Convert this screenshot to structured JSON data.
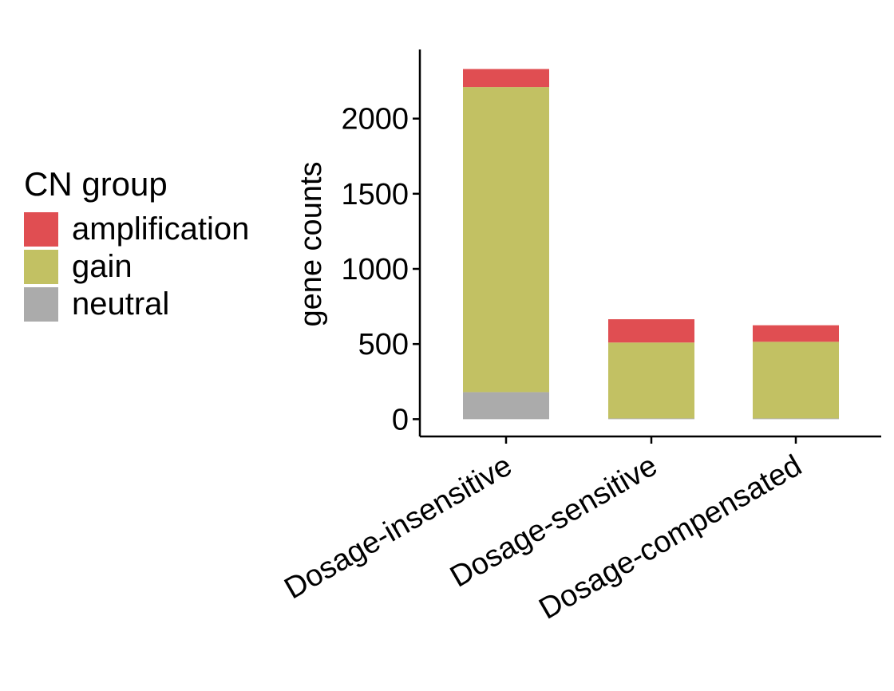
{
  "chart_data": {
    "type": "bar",
    "stacked": true,
    "categories": [
      "Dosage-insensitive",
      "Dosage-sensitive",
      "Dosage-compensated"
    ],
    "series": [
      {
        "name": "neutral",
        "color": "#ababab",
        "values": [
          180,
          5,
          5
        ]
      },
      {
        "name": "gain",
        "color": "#c2c163",
        "values": [
          2030,
          505,
          510
        ]
      },
      {
        "name": "amplification",
        "color": "#e04e52",
        "values": [
          120,
          155,
          110
        ]
      }
    ],
    "legend_title": "CN group",
    "legend_order": [
      "amplification",
      "gain",
      "neutral"
    ],
    "xlabel": "",
    "ylabel": "gene counts",
    "yticks": [
      0,
      500,
      1000,
      1500,
      2000
    ],
    "ylim": [
      -115,
      2460
    ],
    "grid": false,
    "legend_position": "left"
  }
}
